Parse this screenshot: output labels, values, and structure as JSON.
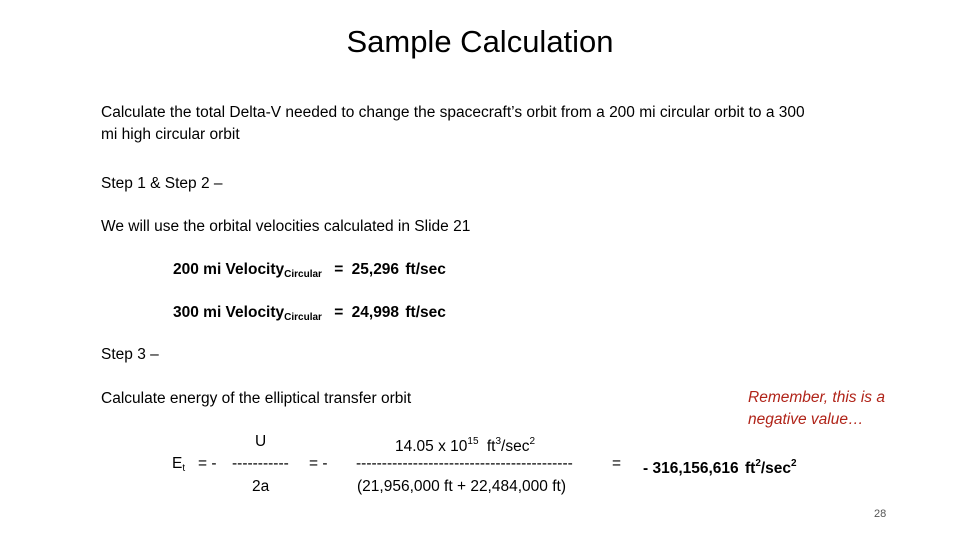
{
  "title": "Sample Calculation",
  "intro_line1": "Calculate the total Delta-V needed to change the spacecraft’s orbit from a 200 mi circular orbit to a 300",
  "intro_line2": "mi high circular orbit",
  "step12": "Step 1 & Step 2 –",
  "orbital_note": "We will use the orbital velocities calculated in Slide 21",
  "velocity1": {
    "label": "200 mi Velocity",
    "subscript": "Circular",
    "equals": "=",
    "value": "25,296",
    "unit": "ft/sec"
  },
  "velocity2": {
    "label": "300 mi Velocity",
    "subscript": "Circular",
    "equals": "=",
    "value": "24,998",
    "unit": "ft/sec"
  },
  "step3": "Step 3 –",
  "energy_note": "Calculate energy of the elliptical transfer orbit",
  "remember_note": "Remember, this is a negative value…",
  "equation": {
    "lhs_symbol": "E",
    "lhs_subscript": "t",
    "eq1": "=  -",
    "frac1_num": "U",
    "frac1_bar": "-----------",
    "frac1_den": "2a",
    "eq2": "=  -",
    "frac2_num_base": "14.05 x 10",
    "frac2_num_exp": "15",
    "frac2_num_unit": "ft",
    "frac2_num_unit_exp": "3",
    "frac2_num_unit_tail": "/sec",
    "frac2_num_unit_tail_exp": "2",
    "frac2_bar": "------------------------------------------",
    "frac2_den": "(21,956,000 ft  + 22,484,000 ft)",
    "eq3": "=",
    "result_value": "- 316,156,616",
    "result_unit": "ft",
    "result_unit_exp": "2",
    "result_unit_tail": "/sec",
    "result_unit_tail_exp": "2"
  },
  "page_number": "28"
}
